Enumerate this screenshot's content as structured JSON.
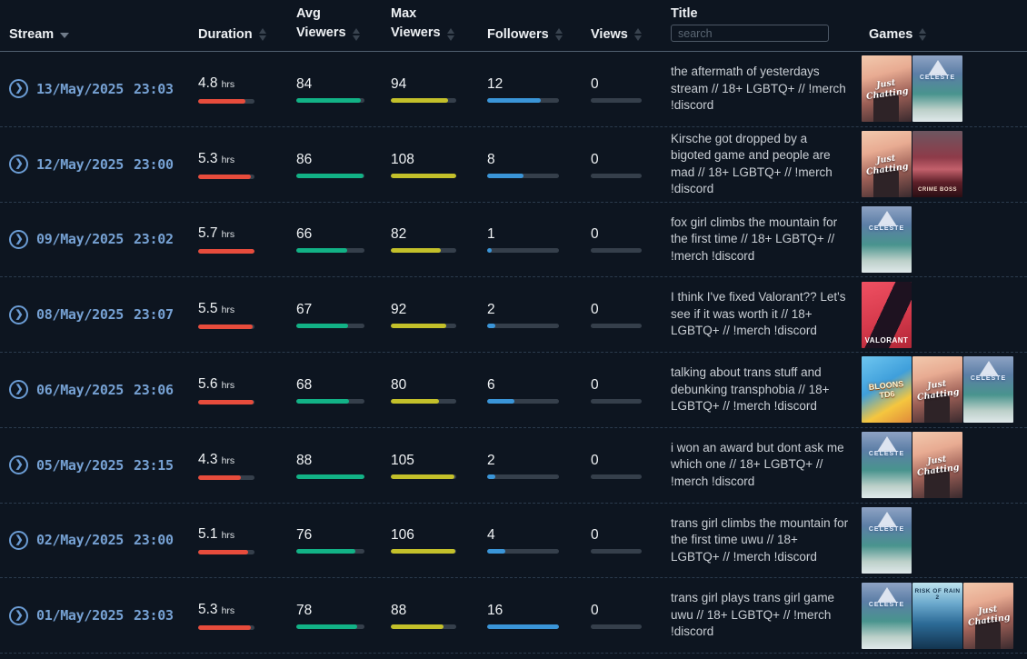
{
  "header": {
    "columns": {
      "stream": {
        "label": "Stream",
        "sort_direction": "desc"
      },
      "duration": {
        "label": "Duration"
      },
      "avg": {
        "label_top": "Avg",
        "label_bottom": "Viewers"
      },
      "max": {
        "label_top": "Max",
        "label_bottom": "Viewers"
      },
      "followers": {
        "label": "Followers"
      },
      "views": {
        "label": "Views"
      },
      "title": {
        "label": "Title",
        "search_placeholder": "search",
        "search_value": ""
      },
      "games": {
        "label": "Games"
      }
    }
  },
  "colors": {
    "background": "#0d1520",
    "duration_bar": "#e74c3c",
    "avg_viewers_bar": "#12b286",
    "max_viewers_bar": "#c3c02a",
    "followers_bar": "#3a95d8",
    "bar_track": "#353f4b",
    "date_text": "#76a1d3"
  },
  "games_catalog": {
    "just-chatting": {
      "label": "Just Chatting"
    },
    "celeste": {
      "label": "CELESTE"
    },
    "crime-boss": {
      "label": "CRIME BOSS"
    },
    "valorant": {
      "label": "VALORANT"
    },
    "bloons-td-6": {
      "label": "BLOONS TD6"
    },
    "risk-of-rain-2": {
      "label": "RISK OF RAIN 2"
    }
  },
  "rows": [
    {
      "date": "13/May/2025",
      "time": "23:03",
      "duration": "4.8",
      "duration_unit": "hrs",
      "duration_pct": 84,
      "avg": "84",
      "avg_pct": 95,
      "max": "94",
      "max_pct": 87,
      "followers": "12",
      "followers_pct": 75,
      "views": "0",
      "views_pct": 0,
      "title": "the aftermath of yesterdays stream // 18+ LGBTQ+ // !merch !discord",
      "games": [
        "just-chatting",
        "celeste"
      ]
    },
    {
      "date": "12/May/2025",
      "time": "23:00",
      "duration": "5.3",
      "duration_unit": "hrs",
      "duration_pct": 93,
      "avg": "86",
      "avg_pct": 98,
      "max": "108",
      "max_pct": 100,
      "followers": "8",
      "followers_pct": 50,
      "views": "0",
      "views_pct": 0,
      "title": "Kirsche got dropped by a bigoted game and people are mad // 18+ LGBTQ+ // !merch !discord",
      "games": [
        "just-chatting",
        "crime-boss"
      ]
    },
    {
      "date": "09/May/2025",
      "time": "23:02",
      "duration": "5.7",
      "duration_unit": "hrs",
      "duration_pct": 100,
      "avg": "66",
      "avg_pct": 75,
      "max": "82",
      "max_pct": 76,
      "followers": "1",
      "followers_pct": 6,
      "views": "0",
      "views_pct": 0,
      "title": "fox girl climbs the mountain for the first time // 18+ LGBTQ+ // !merch !discord",
      "games": [
        "celeste"
      ]
    },
    {
      "date": "08/May/2025",
      "time": "23:07",
      "duration": "5.5",
      "duration_unit": "hrs",
      "duration_pct": 96,
      "avg": "67",
      "avg_pct": 76,
      "max": "92",
      "max_pct": 85,
      "followers": "2",
      "followers_pct": 12,
      "views": "0",
      "views_pct": 0,
      "title": "I think I've fixed Valorant?? Let's see if it was worth it // 18+ LGBTQ+ // !merch !discord",
      "games": [
        "valorant"
      ]
    },
    {
      "date": "06/May/2025",
      "time": "23:06",
      "duration": "5.6",
      "duration_unit": "hrs",
      "duration_pct": 98,
      "avg": "68",
      "avg_pct": 77,
      "max": "80",
      "max_pct": 74,
      "followers": "6",
      "followers_pct": 38,
      "views": "0",
      "views_pct": 0,
      "title": "talking about trans stuff and debunking transphobia // 18+ LGBTQ+ // !merch !discord",
      "games": [
        "bloons-td-6",
        "just-chatting",
        "celeste"
      ]
    },
    {
      "date": "05/May/2025",
      "time": "23:15",
      "duration": "4.3",
      "duration_unit": "hrs",
      "duration_pct": 75,
      "avg": "88",
      "avg_pct": 100,
      "max": "105",
      "max_pct": 97,
      "followers": "2",
      "followers_pct": 12,
      "views": "0",
      "views_pct": 0,
      "title": "i won an award but dont ask me which one // 18+ LGBTQ+ // !merch !discord",
      "games": [
        "celeste",
        "just-chatting"
      ]
    },
    {
      "date": "02/May/2025",
      "time": "23:00",
      "duration": "5.1",
      "duration_unit": "hrs",
      "duration_pct": 89,
      "avg": "76",
      "avg_pct": 86,
      "max": "106",
      "max_pct": 98,
      "followers": "4",
      "followers_pct": 25,
      "views": "0",
      "views_pct": 0,
      "title": "trans girl climbs the mountain for the first time uwu // 18+ LGBTQ+ // !merch !discord",
      "games": [
        "celeste"
      ]
    },
    {
      "date": "01/May/2025",
      "time": "23:03",
      "duration": "5.3",
      "duration_unit": "hrs",
      "duration_pct": 93,
      "avg": "78",
      "avg_pct": 89,
      "max": "88",
      "max_pct": 81,
      "followers": "16",
      "followers_pct": 100,
      "views": "0",
      "views_pct": 0,
      "title": "trans girl plays trans girl game uwu // 18+ LGBTQ+ // !merch !discord",
      "games": [
        "celeste",
        "risk-of-rain-2",
        "just-chatting"
      ]
    }
  ]
}
